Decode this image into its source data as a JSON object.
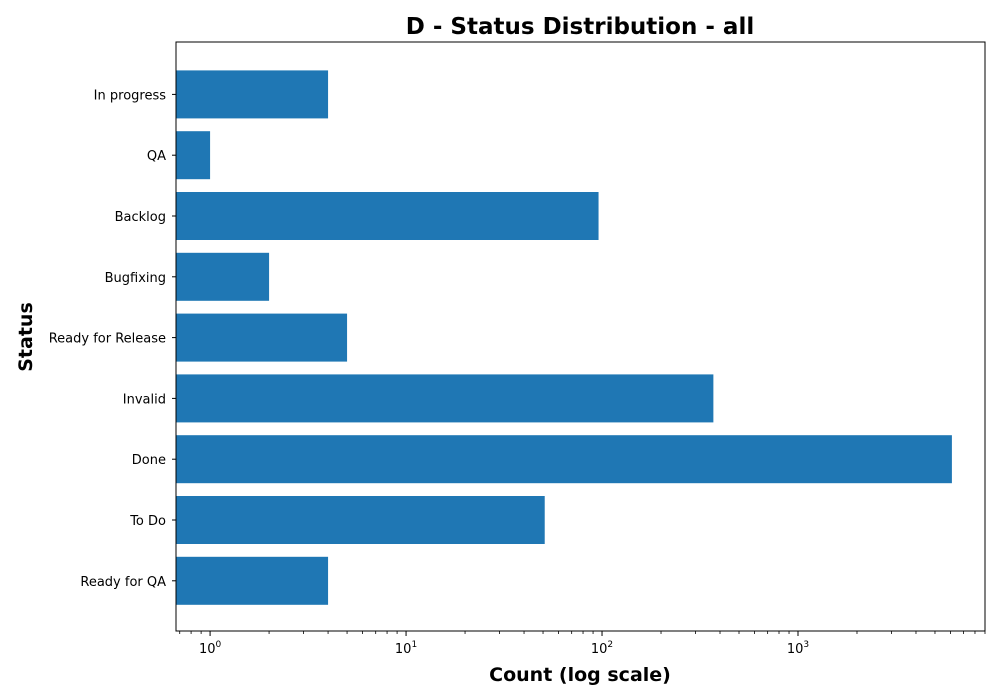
{
  "chart_data": {
    "type": "bar",
    "orientation": "horizontal",
    "title": "D - Status Distribution - all",
    "xlabel": "Count (log scale)",
    "ylabel": "Status",
    "xscale": "log",
    "xlim": [
      0.67,
      9000
    ],
    "x_ticks": [
      {
        "value": 1,
        "label": "0"
      },
      {
        "value": 10,
        "label": "1"
      },
      {
        "value": 100,
        "label": "2"
      },
      {
        "value": 1000,
        "label": "3"
      }
    ],
    "categories": [
      "In progress",
      "QA",
      "Backlog",
      "Bugfixing",
      "Ready for Release",
      "Invalid",
      "Done",
      "To Do",
      "Ready for QA"
    ],
    "values": [
      4,
      1,
      96,
      2,
      5,
      370,
      6100,
      51,
      4
    ],
    "color": "#1f77b4",
    "grid": false,
    "legend": "none"
  }
}
